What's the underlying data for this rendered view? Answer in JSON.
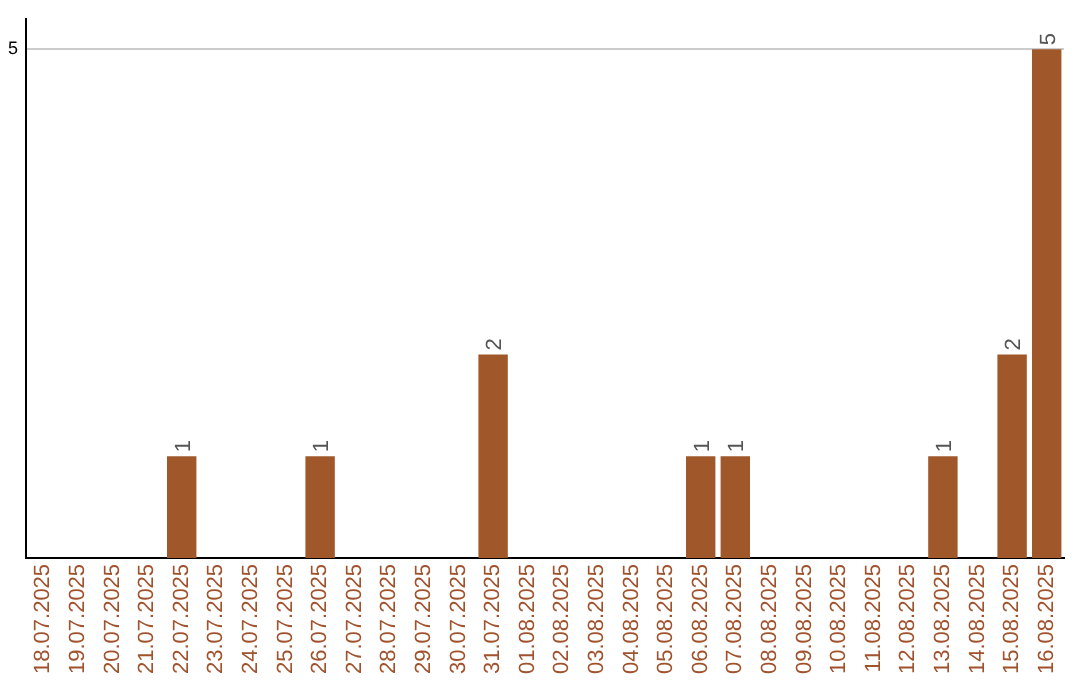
{
  "chart_data": {
    "type": "bar",
    "categories": [
      "18.07.2025",
      "19.07.2025",
      "20.07.2025",
      "21.07.2025",
      "22.07.2025",
      "23.07.2025",
      "24.07.2025",
      "25.07.2025",
      "26.07.2025",
      "27.07.2025",
      "28.07.2025",
      "29.07.2025",
      "30.07.2025",
      "31.07.2025",
      "01.08.2025",
      "02.08.2025",
      "03.08.2025",
      "04.08.2025",
      "05.08.2025",
      "06.08.2025",
      "07.08.2025",
      "08.08.2025",
      "09.08.2025",
      "10.08.2025",
      "11.08.2025",
      "12.08.2025",
      "13.08.2025",
      "14.08.2025",
      "15.08.2025",
      "16.08.2025"
    ],
    "values": [
      0,
      0,
      0,
      0,
      1,
      0,
      0,
      0,
      1,
      0,
      0,
      0,
      0,
      2,
      0,
      0,
      0,
      0,
      0,
      1,
      1,
      0,
      0,
      0,
      0,
      0,
      1,
      0,
      2,
      5
    ],
    "value_labels": [
      null,
      null,
      null,
      null,
      "1",
      null,
      null,
      null,
      "1",
      null,
      null,
      null,
      null,
      "2",
      null,
      null,
      null,
      null,
      null,
      "1",
      "1",
      null,
      null,
      null,
      null,
      null,
      "1",
      null,
      "2",
      "5"
    ],
    "color": "#a0582a",
    "ylim": [
      0,
      5.3
    ],
    "yticks": [
      5
    ],
    "grid": "y",
    "legend": false
  }
}
